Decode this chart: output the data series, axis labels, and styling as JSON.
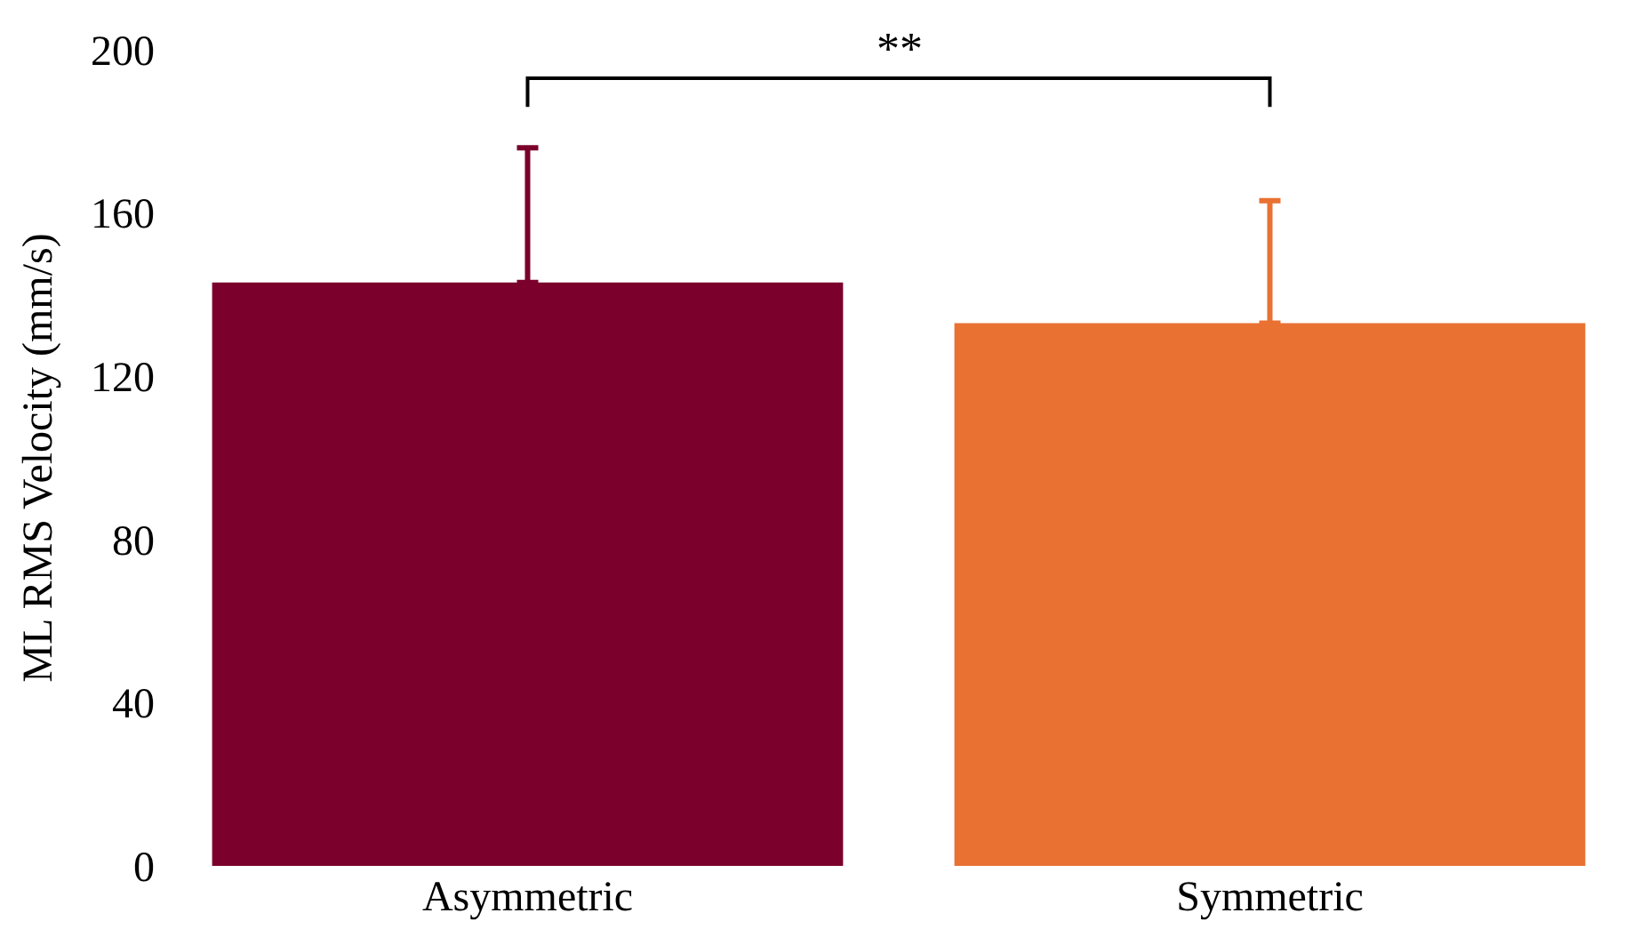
{
  "chart_data": {
    "type": "bar",
    "ylabel": "ML RMS Velocity (mm/s)",
    "categories": [
      "Asymmetric",
      "Symmetric"
    ],
    "values": [
      143,
      133
    ],
    "colors": [
      "#7b002c",
      "#e97132"
    ],
    "errors": [
      [
        143,
        176
      ],
      [
        133,
        163
      ]
    ],
    "ylim": [
      0,
      200
    ],
    "yticks": [
      0,
      40,
      80,
      120,
      160,
      200
    ],
    "grid": false,
    "annotations": [
      "**"
    ]
  }
}
